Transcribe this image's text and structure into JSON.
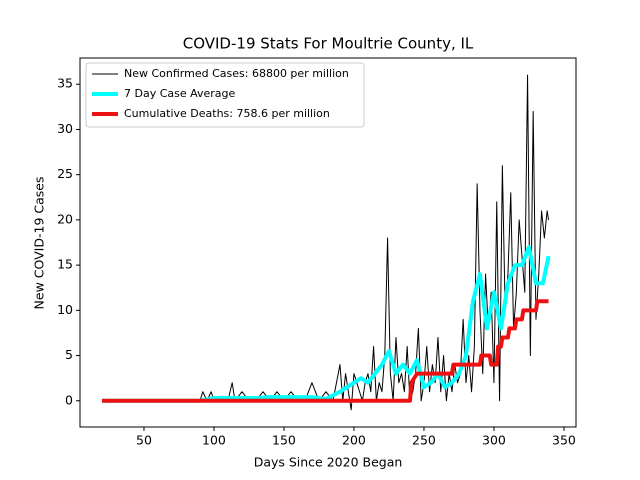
{
  "chart_data": {
    "type": "line",
    "title": "COVID-19 Stats For Moultrie County, IL",
    "x_label": "Days Since 2020 Began",
    "y_label": "New COVID-19 Cases",
    "xlim": [
      4.3,
      358.6
    ],
    "xticks": [
      50,
      100,
      150,
      200,
      250,
      300,
      350
    ],
    "ylim": [
      -2.9,
      37.9
    ],
    "yticks": [
      0,
      5,
      10,
      15,
      20,
      25,
      30,
      35
    ],
    "legend": "upper-left",
    "series": [
      {
        "name": "New Confirmed Cases: 68800 per million",
        "color": "#000000",
        "width": 1,
        "x": [
          20,
          30,
          40,
          50,
          60,
          70,
          80,
          90,
          92,
          95,
          98,
          100,
          105,
          110,
          113,
          115,
          120,
          125,
          130,
          135,
          140,
          145,
          150,
          155,
          160,
          165,
          170,
          175,
          180,
          185,
          190,
          192,
          194,
          196,
          198,
          200,
          202,
          204,
          206,
          208,
          210,
          212,
          214,
          216,
          218,
          220,
          222,
          224,
          226,
          228,
          230,
          232,
          234,
          236,
          238,
          240,
          242,
          244,
          246,
          248,
          250,
          252,
          254,
          256,
          258,
          260,
          262,
          264,
          266,
          268,
          270,
          272,
          274,
          276,
          278,
          280,
          282,
          284,
          286,
          288,
          290,
          292,
          294,
          296,
          298,
          300,
          302,
          304,
          306,
          308,
          310,
          312,
          314,
          316,
          318,
          320,
          322,
          324,
          326,
          328,
          330,
          332,
          334,
          336,
          338,
          339
        ],
        "values": [
          0,
          0,
          0,
          0,
          0,
          0,
          0,
          0,
          1,
          0,
          1,
          0,
          0,
          0,
          2,
          0,
          1,
          0,
          0,
          1,
          0,
          1,
          0,
          1,
          0,
          0,
          2,
          0,
          1,
          0,
          4,
          0,
          3,
          1,
          -1,
          3,
          2,
          1,
          0,
          2,
          3,
          1,
          6,
          0,
          2,
          1,
          5,
          18,
          3,
          0,
          7,
          2,
          3,
          1,
          6,
          0,
          1,
          3,
          8,
          0,
          2,
          6,
          1,
          4,
          2,
          7,
          1,
          5,
          0,
          3,
          1,
          4,
          2,
          3,
          9,
          2,
          5,
          1,
          6,
          24,
          10,
          3,
          14,
          8,
          12,
          2,
          22,
          0,
          26,
          10,
          14,
          23,
          8,
          12,
          20,
          16,
          12,
          36,
          5,
          32,
          9,
          14,
          21,
          18,
          21,
          20
        ]
      },
      {
        "name": "7 Day Case Average",
        "color": "#00ffff",
        "width": 4,
        "x": [
          20,
          90,
          100,
          110,
          120,
          130,
          140,
          150,
          160,
          170,
          180,
          190,
          195,
          200,
          205,
          210,
          215,
          220,
          225,
          230,
          235,
          240,
          245,
          250,
          255,
          260,
          265,
          270,
          275,
          280,
          285,
          290,
          295,
          300,
          305,
          310,
          315,
          320,
          325,
          330,
          335,
          339
        ],
        "values": [
          0,
          0,
          0.3,
          0.3,
          0.3,
          0.3,
          0.4,
          0.4,
          0.4,
          0.4,
          0.2,
          1,
          1.5,
          2,
          2.5,
          2,
          3,
          4,
          5.5,
          3,
          4,
          3,
          4.5,
          1.5,
          2,
          3,
          1.5,
          2,
          3,
          5,
          11,
          14,
          8,
          12,
          8,
          13,
          15,
          15,
          17,
          13,
          13,
          16
        ]
      },
      {
        "name": "Cumulative Deaths: 758.6 per million",
        "color": "#ee1111",
        "width": 4,
        "x": [
          20,
          240,
          241,
          245,
          270,
          271,
          290,
          291,
          297,
          298,
          302,
          303,
          305,
          306,
          310,
          311,
          315,
          316,
          320,
          321,
          330,
          331,
          339
        ],
        "values": [
          0,
          0,
          2,
          3,
          3,
          4,
          4,
          5,
          5,
          4,
          4,
          6,
          6,
          7,
          7,
          8,
          8,
          9,
          9,
          10,
          10,
          11,
          11
        ]
      }
    ]
  }
}
